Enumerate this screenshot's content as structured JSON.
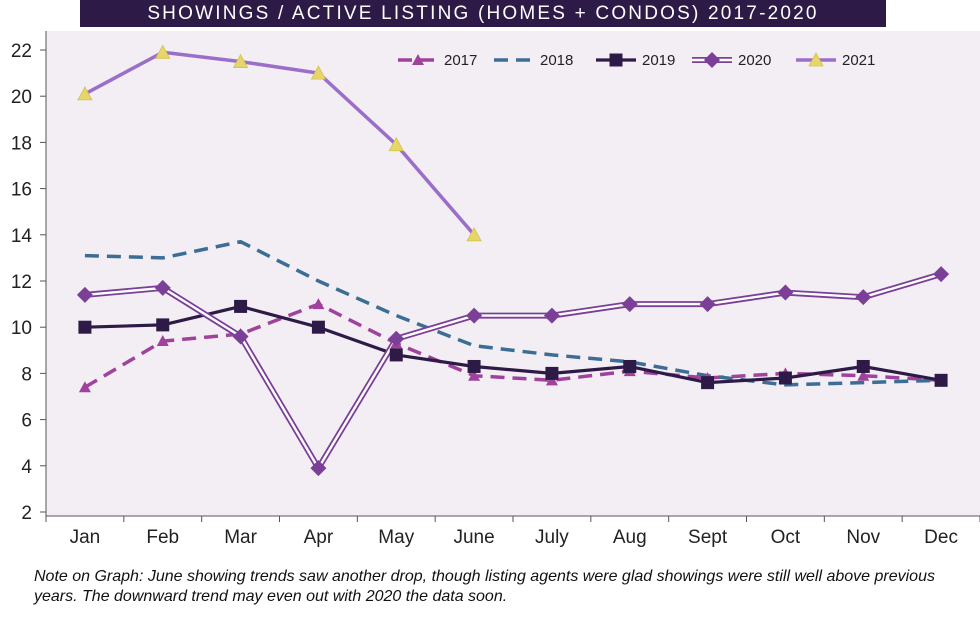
{
  "note": "Note on Graph: June showing trends saw another drop, though listing agents were glad showings were still well above previous years. The downward trend may even out with 2020 the data soon.",
  "chart_data": {
    "type": "line",
    "title": "SHOWINGS / ACTIVE LISTING (HOMES + CONDOS) 2017-2020",
    "categories": [
      "Jan",
      "Feb",
      "Mar",
      "Apr",
      "May",
      "June",
      "July",
      "Aug",
      "Sept",
      "Oct",
      "Nov",
      "Dec"
    ],
    "ylim": [
      2,
      22
    ],
    "yticks": [
      2,
      4,
      6,
      8,
      10,
      12,
      14,
      16,
      18,
      20,
      22
    ],
    "grid": false,
    "legend": "top-right",
    "background": "#f2eef4",
    "series": [
      {
        "name": "2017",
        "color": "#a0429b",
        "style": "dashed",
        "marker": "triangle",
        "values": [
          7.4,
          9.4,
          9.7,
          11.0,
          9.3,
          7.9,
          7.7,
          8.1,
          7.8,
          8.0,
          7.9,
          7.7
        ]
      },
      {
        "name": "2018",
        "color": "#3c6e95",
        "style": "dashed",
        "marker": "none",
        "values": [
          13.1,
          13.0,
          13.7,
          12.0,
          10.5,
          9.2,
          8.8,
          8.5,
          7.9,
          7.5,
          7.6,
          7.7
        ]
      },
      {
        "name": "2019",
        "color": "#2e1a47",
        "style": "solid",
        "marker": "square",
        "values": [
          10.0,
          10.1,
          10.9,
          10.0,
          8.8,
          8.3,
          8.0,
          8.3,
          7.6,
          7.8,
          8.3,
          7.7
        ]
      },
      {
        "name": "2020",
        "color": "#7b3f98",
        "style": "double",
        "marker": "diamond",
        "values": [
          11.4,
          11.7,
          9.6,
          3.9,
          9.5,
          10.5,
          10.5,
          11.0,
          11.0,
          11.5,
          11.3,
          12.3
        ]
      },
      {
        "name": "2021",
        "color": "#9b6fc9",
        "style": "solid",
        "marker": "triangle-yellow",
        "values": [
          20.1,
          21.9,
          21.5,
          21.0,
          17.9,
          14.0,
          null,
          null,
          null,
          null,
          null,
          null
        ]
      }
    ]
  }
}
